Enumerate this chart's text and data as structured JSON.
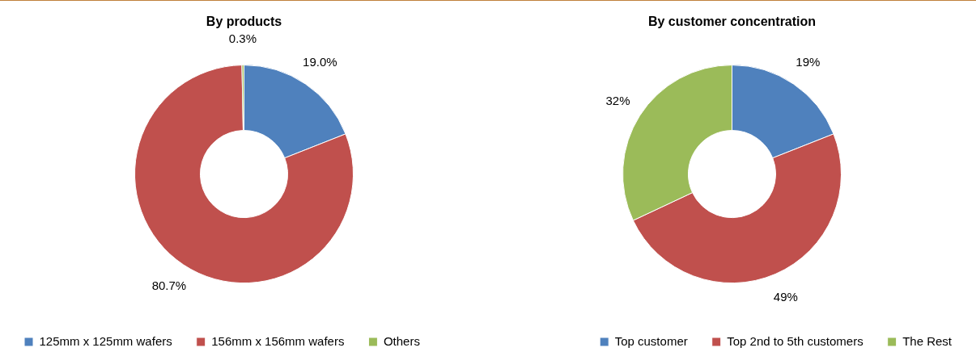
{
  "chart_data": [
    {
      "type": "donut",
      "title": "By products",
      "categories": [
        "125mm x 125mm wafers",
        "156mm x 156mm wafers",
        "Others"
      ],
      "values": [
        19.0,
        80.7,
        0.3
      ],
      "value_labels": [
        "19.0%",
        "80.7%",
        "0.3%"
      ],
      "colors": [
        "#4f81bd",
        "#c0504d",
        "#9bbb59"
      ],
      "legend": "bottom left"
    },
    {
      "type": "donut",
      "title": "By customer concentration",
      "categories": [
        "Top customer",
        "Top 2nd to 5th customers",
        "The Rest"
      ],
      "values": [
        19,
        49,
        32
      ],
      "value_labels": [
        "19%",
        "49%",
        "32%"
      ],
      "colors": [
        "#4f81bd",
        "#c0504d",
        "#9bbb59"
      ],
      "legend": "bottom right"
    }
  ]
}
